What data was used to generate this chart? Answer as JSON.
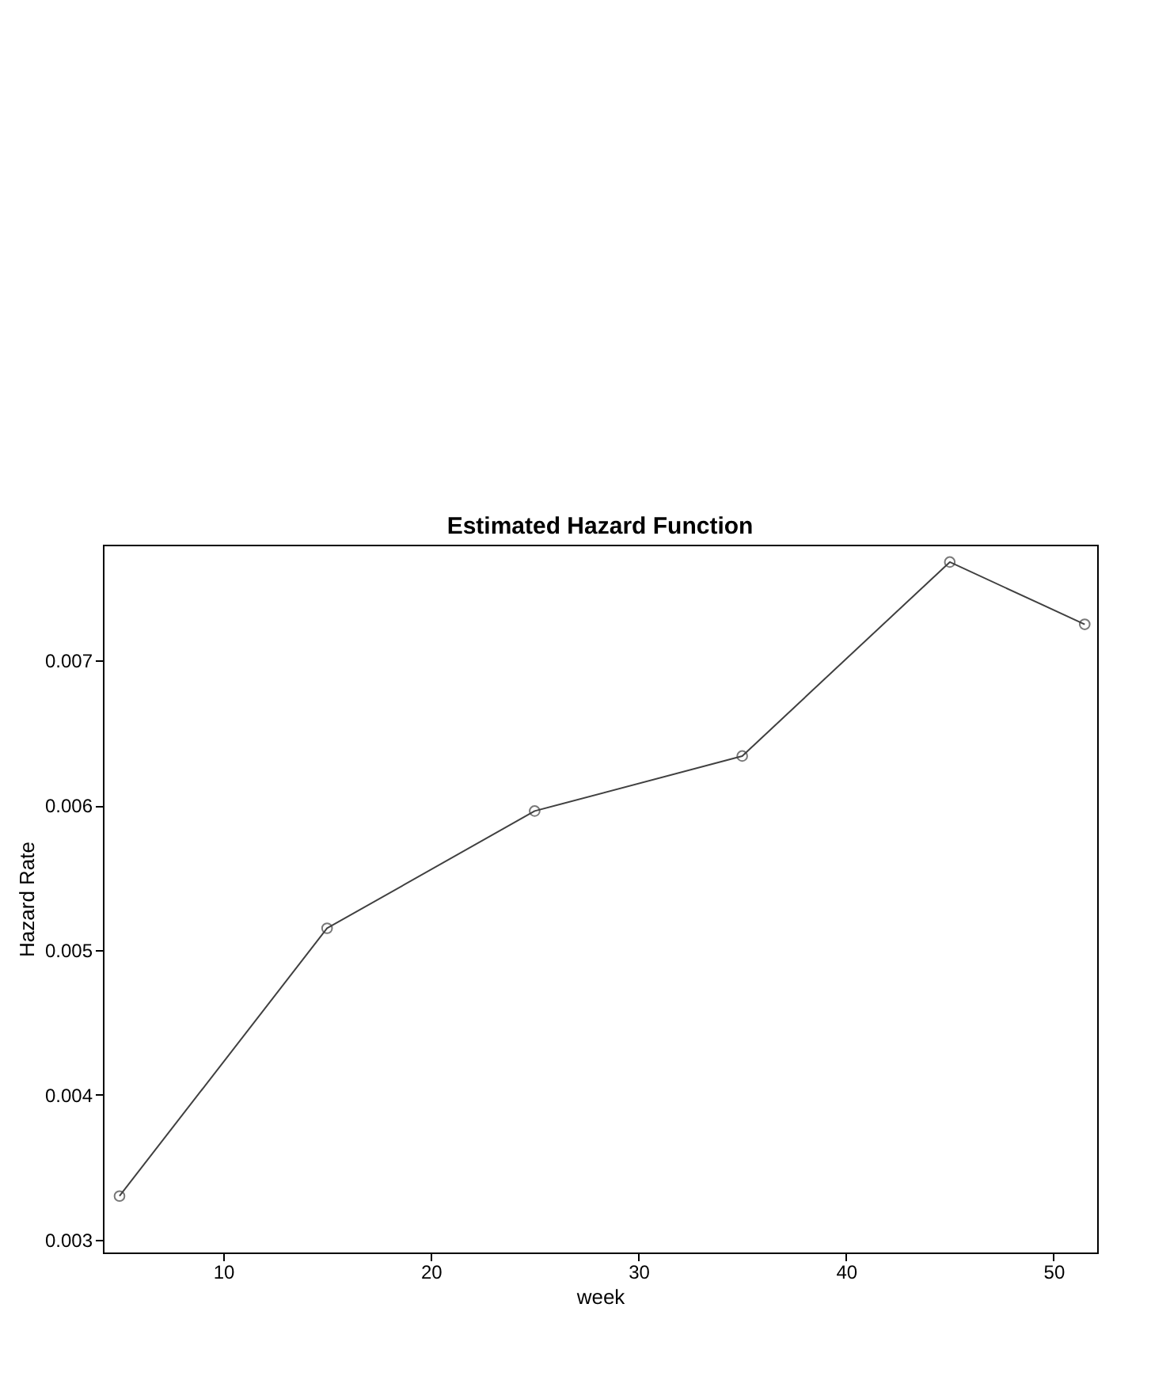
{
  "chart_data": {
    "type": "line",
    "title": "Estimated Hazard Function",
    "xlabel": "week",
    "ylabel": "Hazard Rate",
    "x": [
      5,
      15,
      25,
      35,
      45,
      51.5
    ],
    "series": [
      {
        "color": "#404040",
        "values": [
          0.0033,
          0.00515,
          0.00596,
          0.00634,
          0.00768,
          0.00725
        ]
      }
    ],
    "xlim": [
      4.2,
      52.1
    ],
    "xticks": [
      10,
      20,
      30,
      40,
      50
    ],
    "ylim": [
      0.00291,
      0.0078
    ],
    "yticks": [
      0.003,
      0.004,
      0.005,
      0.006,
      0.007
    ],
    "marker": "circle",
    "line_style": "solid",
    "grid": false,
    "legend": false
  }
}
